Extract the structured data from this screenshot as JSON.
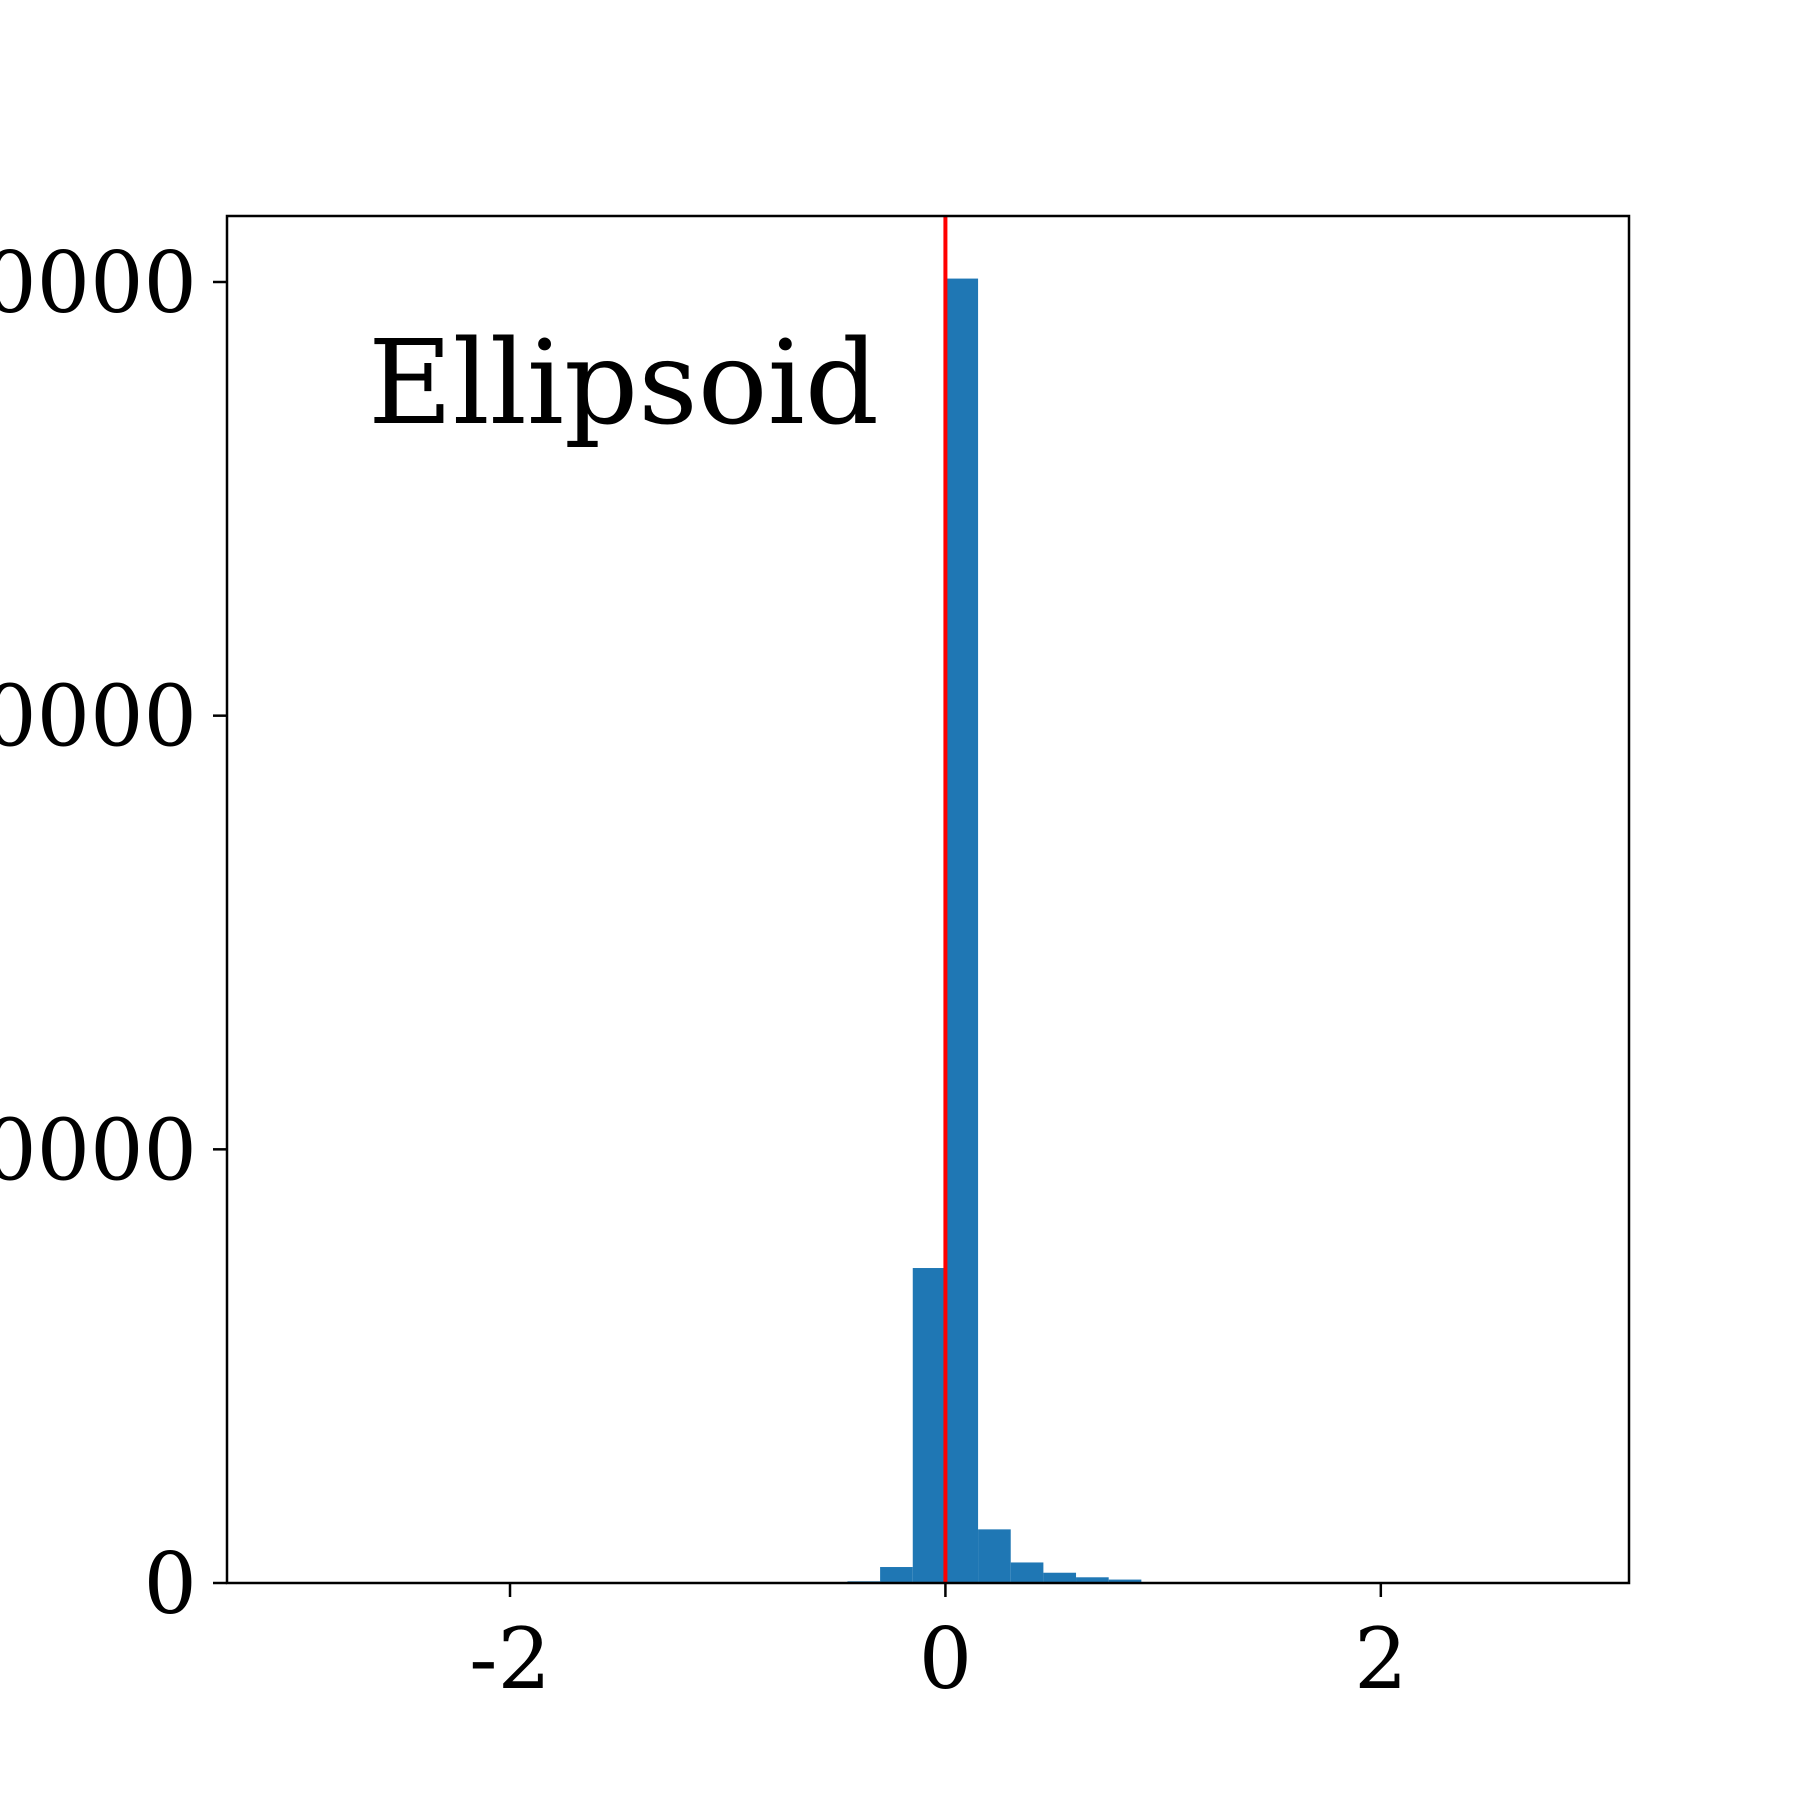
{
  "chart_data": {
    "type": "bar",
    "title": "",
    "annotation": "Ellipsoid",
    "xlabel": "",
    "ylabel": "",
    "xlim": [
      -3.3,
      3.14
    ],
    "ylim": [
      0,
      1140
    ],
    "x_ticks": [
      {
        "value": -2,
        "label": "-2"
      },
      {
        "value": 0,
        "label": "0"
      },
      {
        "value": 2,
        "label": "2"
      }
    ],
    "y_ticks": [
      {
        "value": 0,
        "label": "0"
      },
      {
        "value": 380,
        "label": "0000"
      },
      {
        "value": 760,
        "label": "0000"
      },
      {
        "value": 1140,
        "label": "0000"
      }
    ],
    "bin_width": 0.15,
    "bins": [
      {
        "x0": -0.45,
        "x1": -0.3,
        "value": 1.5
      },
      {
        "x0": -0.3,
        "x1": -0.15,
        "value": 14
      },
      {
        "x0": -0.15,
        "x1": 0.0,
        "value": 276
      },
      {
        "x0": 0.0,
        "x1": 0.15,
        "value": 1143
      },
      {
        "x0": 0.15,
        "x1": 0.3,
        "value": 47
      },
      {
        "x0": 0.3,
        "x1": 0.45,
        "value": 18
      },
      {
        "x0": 0.45,
        "x1": 0.6,
        "value": 9
      },
      {
        "x0": 0.6,
        "x1": 0.75,
        "value": 5
      },
      {
        "x0": 0.75,
        "x1": 0.9,
        "value": 3
      }
    ],
    "reference_line": {
      "x": 0.0,
      "color": "#ff0000"
    },
    "bar_color": "#1f77b4",
    "grid": false,
    "legend": "none"
  }
}
